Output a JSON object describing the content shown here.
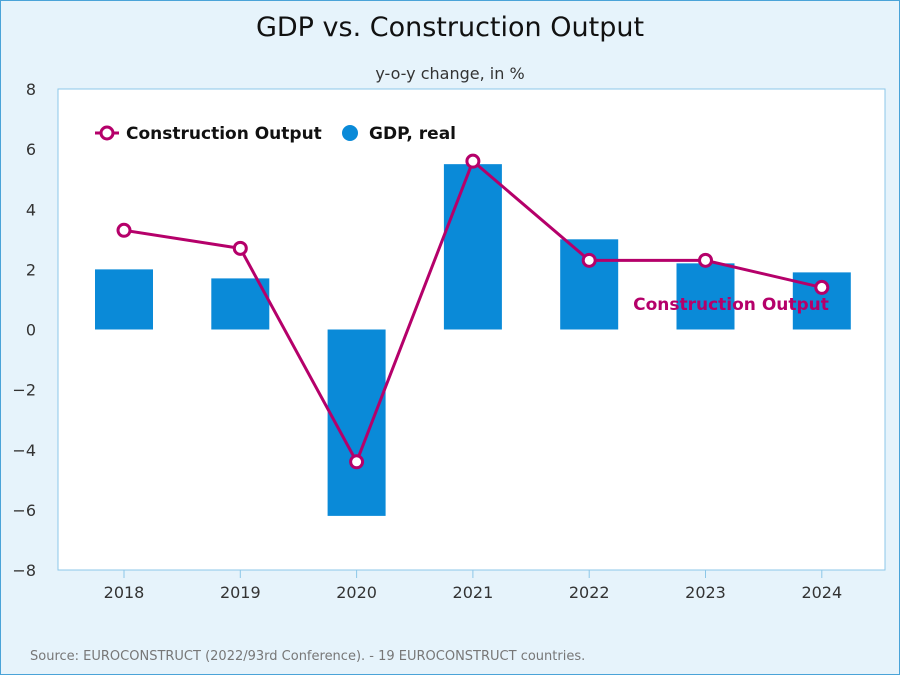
{
  "chart_data": {
    "type": "bar",
    "title": "GDP vs. Construction Output",
    "subtitle": "y-o-y change, in %",
    "categories": [
      "2018",
      "2019",
      "2020",
      "2021",
      "2022",
      "2023",
      "2024"
    ],
    "series": [
      {
        "name": "GDP, real",
        "type": "bar",
        "color": "#0a8ad8",
        "values": [
          2.0,
          1.7,
          -6.2,
          5.5,
          3.0,
          2.2,
          1.9
        ]
      },
      {
        "name": "Construction Output",
        "type": "line",
        "color": "#b5006a",
        "values": [
          3.3,
          2.7,
          -4.4,
          5.6,
          2.3,
          2.3,
          1.4
        ]
      }
    ],
    "ylim": [
      -8,
      8
    ],
    "yticks": [
      8,
      6,
      4,
      2,
      0,
      -2,
      -4,
      -6,
      -8
    ],
    "ytick_labels": [
      "8",
      "6",
      "4",
      "2",
      "0",
      "−2",
      "−4",
      "−6",
      "−8"
    ],
    "legend_position": "top-left",
    "grid": false,
    "annotation": "Construction Output",
    "source": "Source: EUROCONSTRUCT (2022/93rd Conference). - 19 EUROCONSTRUCT countries."
  }
}
